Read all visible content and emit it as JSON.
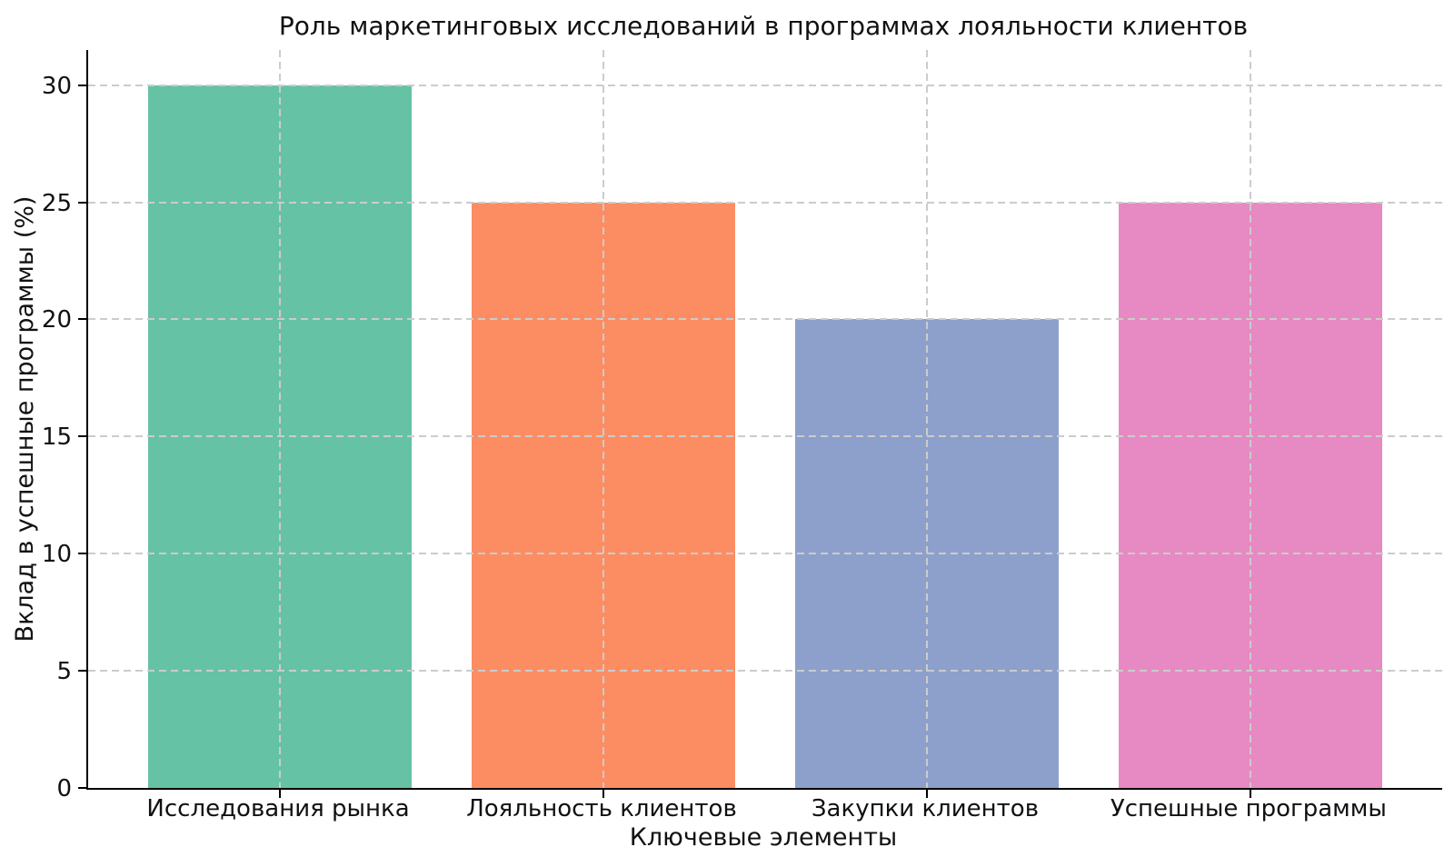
{
  "figure": {
    "background": "#ffffff",
    "axis_color": "#000000",
    "grid_color": "#cccccc",
    "text_color": "#111111"
  },
  "chart_data": {
    "type": "bar",
    "title": "Роль маркетинговых исследований в программах лояльности клиентов",
    "xlabel": "Ключевые элементы",
    "ylabel": "Вклад в успешные программы (%)",
    "categories": [
      "Исследования рынка",
      "Лояльность клиентов",
      "Закупки клиентов",
      "Успешные программы"
    ],
    "values": [
      30,
      25,
      20,
      25
    ],
    "bar_colors": [
      "#66c2a5",
      "#fc8d62",
      "#8da0cb",
      "#e78ac3"
    ],
    "ylim": [
      0,
      31.5
    ],
    "yticks": [
      0,
      5,
      10,
      15,
      20,
      25,
      30
    ],
    "grid": "dashed",
    "grid_on": true,
    "legend": "none"
  }
}
